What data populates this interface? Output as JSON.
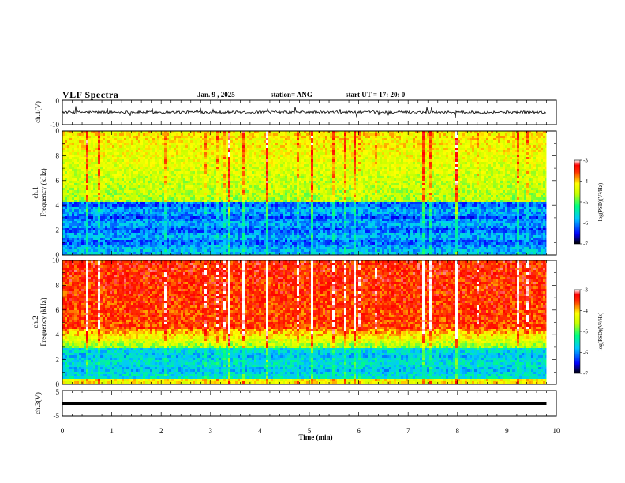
{
  "header": {
    "title": "VLF Spectra",
    "date": "Jan. 9 , 2025",
    "station": "station= ANG",
    "start": "start UT = 17: 20: 0"
  },
  "chart_data": [
    {
      "type": "line",
      "ylabel": "ch.1(V)",
      "ylim": [
        -10,
        10
      ],
      "yticks": [
        "10",
        "-10"
      ],
      "description_series": "waveform"
    },
    {
      "type": "heatmap",
      "ylabel_top": "ch.1",
      "ylabel": "Frequency (kHz)",
      "ylim": [
        0,
        10
      ],
      "yticks": [
        "0",
        "2",
        "4",
        "6",
        "8",
        "10"
      ],
      "colorbar": {
        "label": "log(PSD)(V²/Hz)",
        "range": [
          -7,
          -3
        ],
        "ticks": [
          "-3",
          "-4",
          "-5",
          "-6",
          "-7"
        ]
      }
    },
    {
      "type": "heatmap",
      "ylabel_top": "ch.2",
      "ylabel": "Frequency (kHz)",
      "ylim": [
        0,
        10
      ],
      "yticks": [
        "0",
        "2",
        "4",
        "6",
        "8",
        "10"
      ],
      "colorbar": {
        "label": "log(PSD)(V²/Hz)",
        "range": [
          -7,
          -3
        ],
        "ticks": [
          "-3",
          "-4",
          "-5",
          "-6",
          "-7"
        ]
      }
    },
    {
      "type": "line",
      "ylabel": "ch.3(V)",
      "ylim": [
        -5,
        5
      ],
      "yticks": [
        "5",
        "-5"
      ],
      "value": 0
    }
  ],
  "xaxis": {
    "label": "Time (min)",
    "xlim": [
      0,
      10
    ],
    "data_end": 9.8,
    "ticks": [
      "0",
      "1",
      "2",
      "3",
      "4",
      "5",
      "6",
      "7",
      "8",
      "9",
      "10"
    ]
  }
}
